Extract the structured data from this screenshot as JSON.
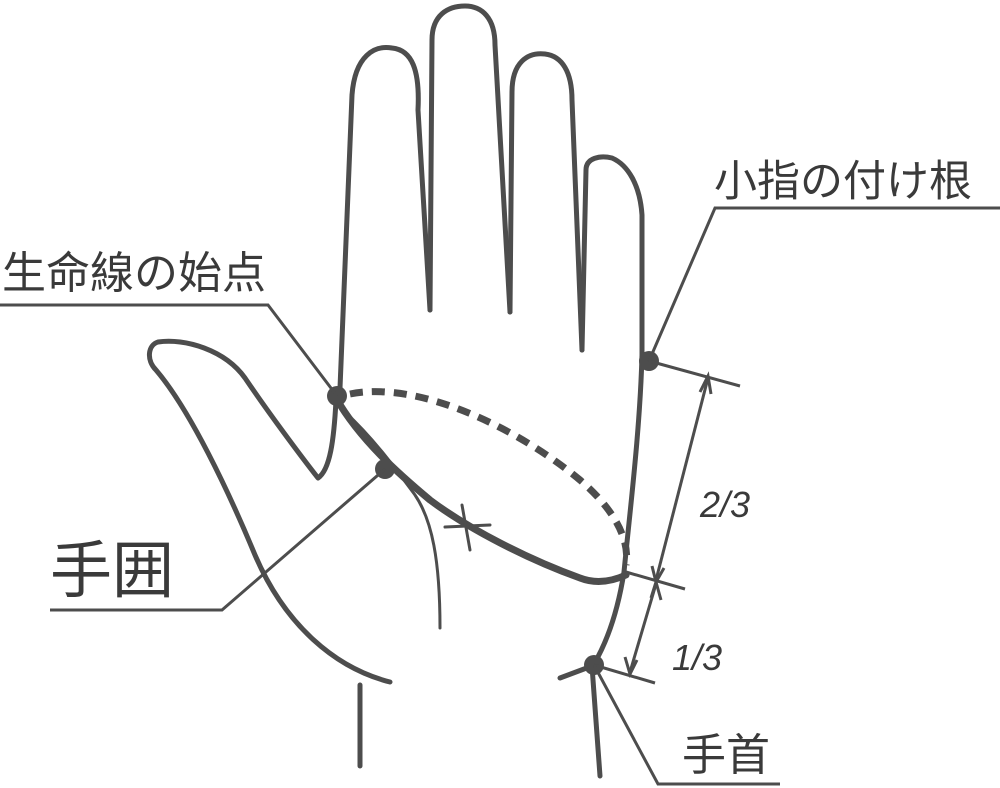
{
  "labels": {
    "lifeline_start": "生命線の始点",
    "pinky_base": "小指の付け根",
    "hand_circumference": "手囲",
    "wrist": "手首",
    "ratio_upper": "2/3",
    "ratio_lower": "1/3"
  },
  "colors": {
    "line": "#4d4d4d",
    "text": "#3a3a3a",
    "background": "#ffffff"
  }
}
